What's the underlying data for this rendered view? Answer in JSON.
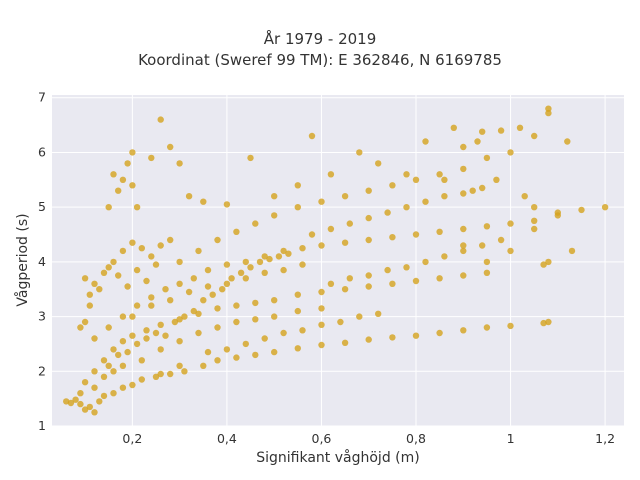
{
  "chart_data": {
    "type": "scatter",
    "title": [
      "År 1979 - 2019",
      "Koordinat (Sweref 99 TM): E 362846, N 6169785"
    ],
    "xlabel": "Signifikant våghöjd (m)",
    "ylabel": "Vågperiod (s)",
    "xlim": [
      0.03,
      1.24
    ],
    "ylim": [
      1,
      7.05
    ],
    "xticks": [
      0.2,
      0.4,
      0.6,
      0.8,
      1,
      1.2
    ],
    "xtick_labels": [
      "0,2",
      "0,4",
      "0,6",
      "0,8",
      "1",
      "1,2"
    ],
    "yticks": [
      1,
      2,
      3,
      4,
      5,
      6,
      7
    ],
    "ytick_labels": [
      "1",
      "2",
      "3",
      "4",
      "5",
      "6",
      "7"
    ],
    "grid": true,
    "marker_color": "#D4A21E",
    "background_color": "#E9E9F1",
    "series": [
      {
        "points": [
          [
            0.06,
            1.45
          ],
          [
            0.07,
            1.42
          ],
          [
            0.08,
            1.48
          ],
          [
            0.09,
            1.4
          ],
          [
            0.1,
            1.3
          ],
          [
            0.11,
            1.35
          ],
          [
            0.12,
            1.25
          ],
          [
            0.13,
            1.45
          ],
          [
            0.14,
            1.55
          ],
          [
            0.16,
            1.6
          ],
          [
            0.18,
            1.7
          ],
          [
            0.2,
            1.75
          ],
          [
            0.22,
            1.85
          ],
          [
            0.25,
            1.9
          ],
          [
            0.28,
            1.95
          ],
          [
            0.31,
            2.0
          ],
          [
            0.35,
            2.1
          ],
          [
            0.38,
            2.2
          ],
          [
            0.42,
            2.25
          ],
          [
            0.46,
            2.3
          ],
          [
            0.5,
            2.35
          ],
          [
            0.55,
            2.42
          ],
          [
            0.6,
            2.48
          ],
          [
            0.65,
            2.52
          ],
          [
            0.7,
            2.58
          ],
          [
            0.75,
            2.62
          ],
          [
            0.8,
            2.65
          ],
          [
            0.85,
            2.7
          ],
          [
            0.9,
            2.75
          ],
          [
            0.95,
            2.8
          ],
          [
            1.0,
            2.83
          ],
          [
            1.07,
            2.88
          ],
          [
            1.08,
            2.9
          ],
          [
            0.1,
            1.8
          ],
          [
            0.12,
            2.0
          ],
          [
            0.14,
            2.2
          ],
          [
            0.16,
            2.4
          ],
          [
            0.18,
            2.55
          ],
          [
            0.2,
            2.65
          ],
          [
            0.23,
            2.75
          ],
          [
            0.26,
            2.85
          ],
          [
            0.3,
            2.95
          ],
          [
            0.34,
            3.05
          ],
          [
            0.38,
            3.15
          ],
          [
            0.42,
            3.2
          ],
          [
            0.46,
            3.25
          ],
          [
            0.5,
            3.3
          ],
          [
            0.55,
            3.4
          ],
          [
            0.6,
            3.45
          ],
          [
            0.65,
            3.5
          ],
          [
            0.7,
            3.55
          ],
          [
            0.75,
            3.6
          ],
          [
            0.8,
            3.65
          ],
          [
            0.85,
            3.7
          ],
          [
            0.9,
            3.75
          ],
          [
            0.95,
            3.8
          ],
          [
            0.12,
            2.6
          ],
          [
            0.15,
            2.8
          ],
          [
            0.18,
            3.0
          ],
          [
            0.21,
            3.2
          ],
          [
            0.24,
            3.35
          ],
          [
            0.27,
            3.5
          ],
          [
            0.3,
            3.6
          ],
          [
            0.33,
            3.7
          ],
          [
            0.36,
            3.85
          ],
          [
            0.4,
            3.95
          ],
          [
            0.44,
            4.0
          ],
          [
            0.48,
            4.1
          ],
          [
            0.52,
            4.2
          ],
          [
            0.56,
            4.25
          ],
          [
            0.6,
            4.3
          ],
          [
            0.65,
            4.35
          ],
          [
            0.7,
            4.4
          ],
          [
            0.75,
            4.45
          ],
          [
            0.8,
            4.5
          ],
          [
            0.85,
            4.55
          ],
          [
            0.9,
            4.6
          ],
          [
            0.95,
            4.65
          ],
          [
            1.0,
            4.7
          ],
          [
            1.05,
            4.75
          ],
          [
            1.1,
            4.85
          ],
          [
            1.15,
            4.95
          ],
          [
            0.3,
            4.0
          ],
          [
            0.34,
            4.2
          ],
          [
            0.38,
            4.4
          ],
          [
            0.42,
            4.55
          ],
          [
            0.46,
            4.7
          ],
          [
            0.5,
            4.85
          ],
          [
            0.55,
            5.0
          ],
          [
            0.6,
            5.1
          ],
          [
            0.65,
            5.2
          ],
          [
            0.7,
            5.3
          ],
          [
            0.75,
            5.4
          ],
          [
            0.8,
            5.5
          ],
          [
            0.85,
            5.6
          ],
          [
            0.9,
            5.7
          ],
          [
            0.95,
            5.9
          ],
          [
            1.0,
            6.0
          ],
          [
            1.05,
            6.3
          ],
          [
            1.08,
            6.8
          ],
          [
            1.08,
            6.72
          ],
          [
            1.02,
            6.45
          ],
          [
            0.98,
            6.4
          ],
          [
            0.94,
            6.38
          ],
          [
            0.88,
            6.45
          ],
          [
            0.93,
            6.2
          ],
          [
            0.9,
            6.1
          ],
          [
            0.82,
            6.2
          ],
          [
            0.1,
            3.7
          ],
          [
            0.12,
            3.6
          ],
          [
            0.14,
            3.8
          ],
          [
            0.16,
            4.0
          ],
          [
            0.18,
            4.2
          ],
          [
            0.2,
            4.35
          ],
          [
            0.22,
            4.25
          ],
          [
            0.24,
            4.1
          ],
          [
            0.26,
            4.3
          ],
          [
            0.28,
            4.4
          ],
          [
            0.11,
            3.4
          ],
          [
            0.13,
            3.5
          ],
          [
            0.15,
            3.9
          ],
          [
            0.17,
            3.75
          ],
          [
            0.19,
            3.55
          ],
          [
            0.21,
            3.85
          ],
          [
            0.23,
            3.65
          ],
          [
            0.25,
            3.95
          ],
          [
            0.16,
            5.6
          ],
          [
            0.18,
            5.5
          ],
          [
            0.17,
            5.3
          ],
          [
            0.2,
            5.4
          ],
          [
            0.21,
            5.0
          ],
          [
            0.15,
            5.0
          ],
          [
            0.19,
            5.8
          ],
          [
            0.2,
            6.0
          ],
          [
            0.24,
            5.9
          ],
          [
            0.26,
            6.6
          ],
          [
            0.28,
            6.1
          ],
          [
            0.3,
            5.8
          ],
          [
            0.32,
            5.2
          ],
          [
            0.35,
            5.1
          ],
          [
            0.4,
            5.05
          ],
          [
            0.45,
            5.9
          ],
          [
            0.5,
            5.2
          ],
          [
            0.55,
            5.4
          ],
          [
            0.58,
            6.3
          ],
          [
            0.62,
            5.6
          ],
          [
            0.68,
            6.0
          ],
          [
            0.72,
            5.8
          ],
          [
            0.78,
            5.6
          ],
          [
            0.86,
            5.5
          ],
          [
            0.92,
            5.3
          ],
          [
            0.97,
            5.5
          ],
          [
            1.05,
            5.0
          ],
          [
            1.1,
            4.9
          ],
          [
            1.2,
            5.0
          ],
          [
            1.13,
            4.2
          ],
          [
            1.12,
            6.2
          ],
          [
            1.03,
            5.2
          ],
          [
            1.0,
            4.2
          ],
          [
            1.05,
            4.6
          ],
          [
            0.95,
            4.0
          ],
          [
            1.08,
            4.0
          ],
          [
            1.07,
            3.95
          ],
          [
            0.9,
            4.3
          ],
          [
            0.22,
            2.2
          ],
          [
            0.26,
            2.4
          ],
          [
            0.3,
            2.55
          ],
          [
            0.34,
            2.7
          ],
          [
            0.38,
            2.8
          ],
          [
            0.42,
            2.9
          ],
          [
            0.46,
            2.95
          ],
          [
            0.5,
            3.0
          ],
          [
            0.55,
            3.1
          ],
          [
            0.6,
            3.15
          ],
          [
            0.2,
            3.0
          ],
          [
            0.24,
            3.2
          ],
          [
            0.28,
            3.3
          ],
          [
            0.32,
            3.45
          ],
          [
            0.36,
            3.55
          ],
          [
            0.4,
            3.6
          ],
          [
            0.44,
            3.7
          ],
          [
            0.48,
            3.8
          ],
          [
            0.52,
            3.85
          ],
          [
            0.56,
            3.95
          ],
          [
            0.15,
            2.1
          ],
          [
            0.17,
            2.3
          ],
          [
            0.19,
            2.35
          ],
          [
            0.21,
            2.5
          ],
          [
            0.23,
            2.6
          ],
          [
            0.25,
            2.7
          ],
          [
            0.27,
            2.65
          ],
          [
            0.29,
            2.9
          ],
          [
            0.31,
            3.0
          ],
          [
            0.33,
            3.1
          ],
          [
            0.35,
            3.3
          ],
          [
            0.37,
            3.4
          ],
          [
            0.39,
            3.5
          ],
          [
            0.41,
            3.7
          ],
          [
            0.43,
            3.8
          ],
          [
            0.45,
            3.9
          ],
          [
            0.47,
            4.0
          ],
          [
            0.49,
            4.05
          ],
          [
            0.51,
            4.1
          ],
          [
            0.53,
            4.15
          ],
          [
            0.09,
            2.8
          ],
          [
            0.1,
            2.9
          ],
          [
            0.11,
            3.2
          ],
          [
            0.09,
            1.6
          ],
          [
            0.12,
            1.7
          ],
          [
            0.14,
            1.9
          ],
          [
            0.16,
            2.0
          ],
          [
            0.18,
            2.1
          ],
          [
            0.26,
            1.95
          ],
          [
            0.3,
            2.1
          ],
          [
            0.36,
            2.35
          ],
          [
            0.4,
            2.4
          ],
          [
            0.44,
            2.5
          ],
          [
            0.48,
            2.6
          ],
          [
            0.52,
            2.7
          ],
          [
            0.56,
            2.75
          ],
          [
            0.6,
            2.85
          ],
          [
            0.64,
            2.9
          ],
          [
            0.68,
            3.0
          ],
          [
            0.72,
            3.05
          ],
          [
            0.62,
            3.6
          ],
          [
            0.66,
            3.7
          ],
          [
            0.7,
            3.75
          ],
          [
            0.74,
            3.85
          ],
          [
            0.78,
            3.9
          ],
          [
            0.82,
            4.0
          ],
          [
            0.86,
            4.1
          ],
          [
            0.9,
            4.2
          ],
          [
            0.94,
            4.3
          ],
          [
            0.98,
            4.4
          ],
          [
            0.58,
            4.5
          ],
          [
            0.62,
            4.6
          ],
          [
            0.66,
            4.7
          ],
          [
            0.7,
            4.8
          ],
          [
            0.74,
            4.9
          ],
          [
            0.78,
            5.0
          ],
          [
            0.82,
            5.1
          ],
          [
            0.86,
            5.2
          ],
          [
            0.9,
            5.25
          ],
          [
            0.94,
            5.35
          ]
        ]
      }
    ]
  }
}
